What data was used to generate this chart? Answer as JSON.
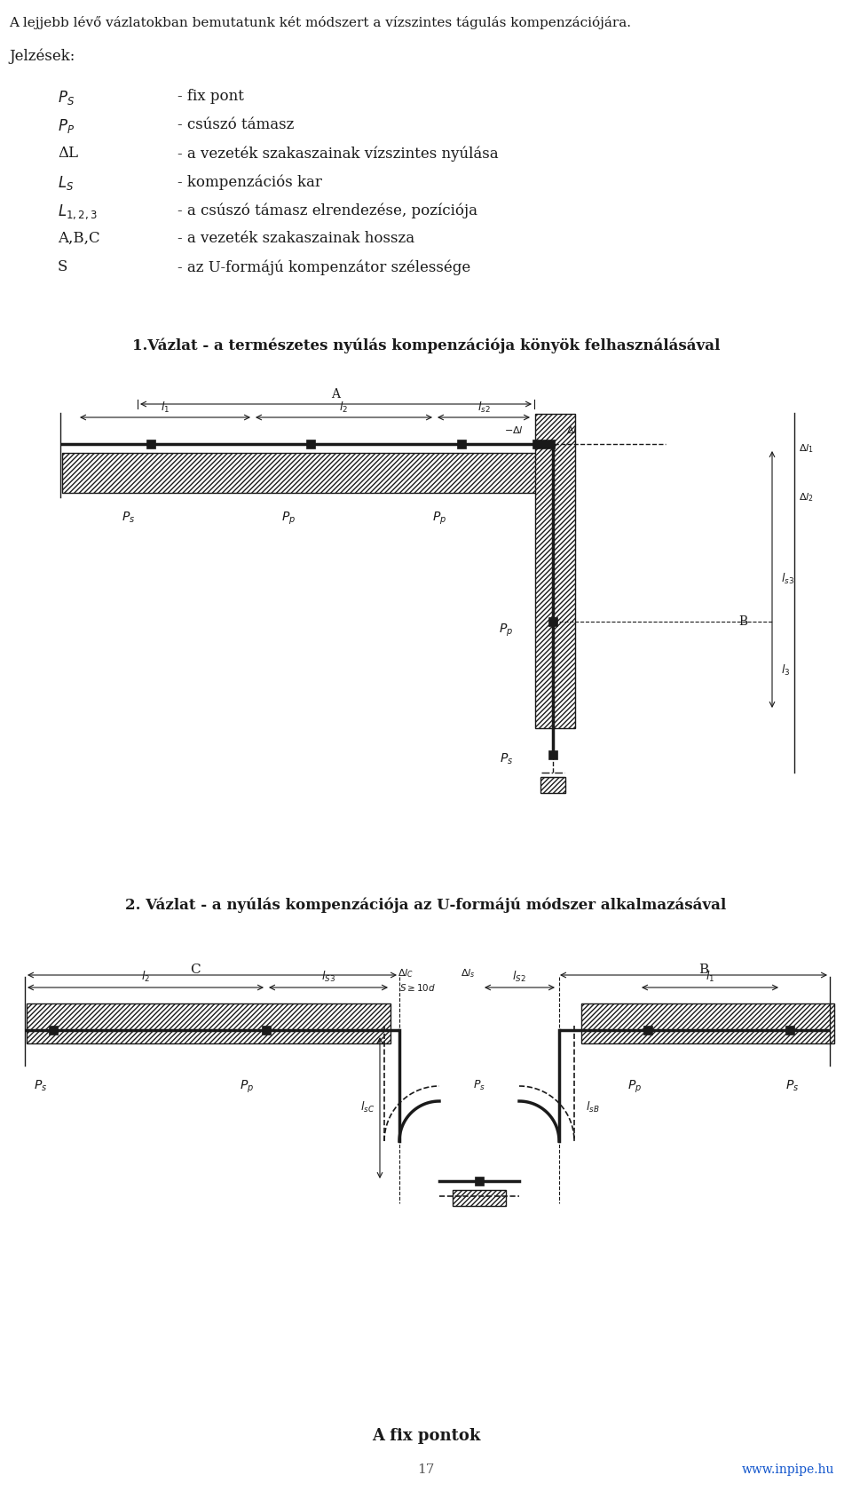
{
  "title_text": "A lejjebb lévő vázlatokban bemutatunk két módszert a vízszintes tágulás kompenzációjára.",
  "jelzesek_title": "Jelzések:",
  "legend_data": [
    [
      "$P_S$",
      "- fix pont"
    ],
    [
      "$P_P$",
      "- csúszó támasz"
    ],
    [
      "ΔL",
      "- a vezeték szakaszainak vízszintes nyúlása"
    ],
    [
      "$L_S$",
      "- kompenzációs kar"
    ],
    [
      "$L_{1,2,3}$",
      "- a csúszó támasz elrendezése, pozíciója"
    ],
    [
      "A,B,C",
      "- a vezeték szakaszainak hossza"
    ],
    [
      "S",
      "- az U-formájú kompenzátor szélessége"
    ]
  ],
  "vazlat1_title": "1.Vázlat - a természetes nyúlás kompenzációja könyök felhasználásával",
  "vazlat2_title": "2. Vázlat - a nyúlás kompenzációja az U-formájú módszer alkalmazásával",
  "footer_text": "A fix pontok",
  "page_number": "17",
  "website": "www.inpipe.hu",
  "bg_color": "#ffffff",
  "line_color": "#1a1a1a"
}
